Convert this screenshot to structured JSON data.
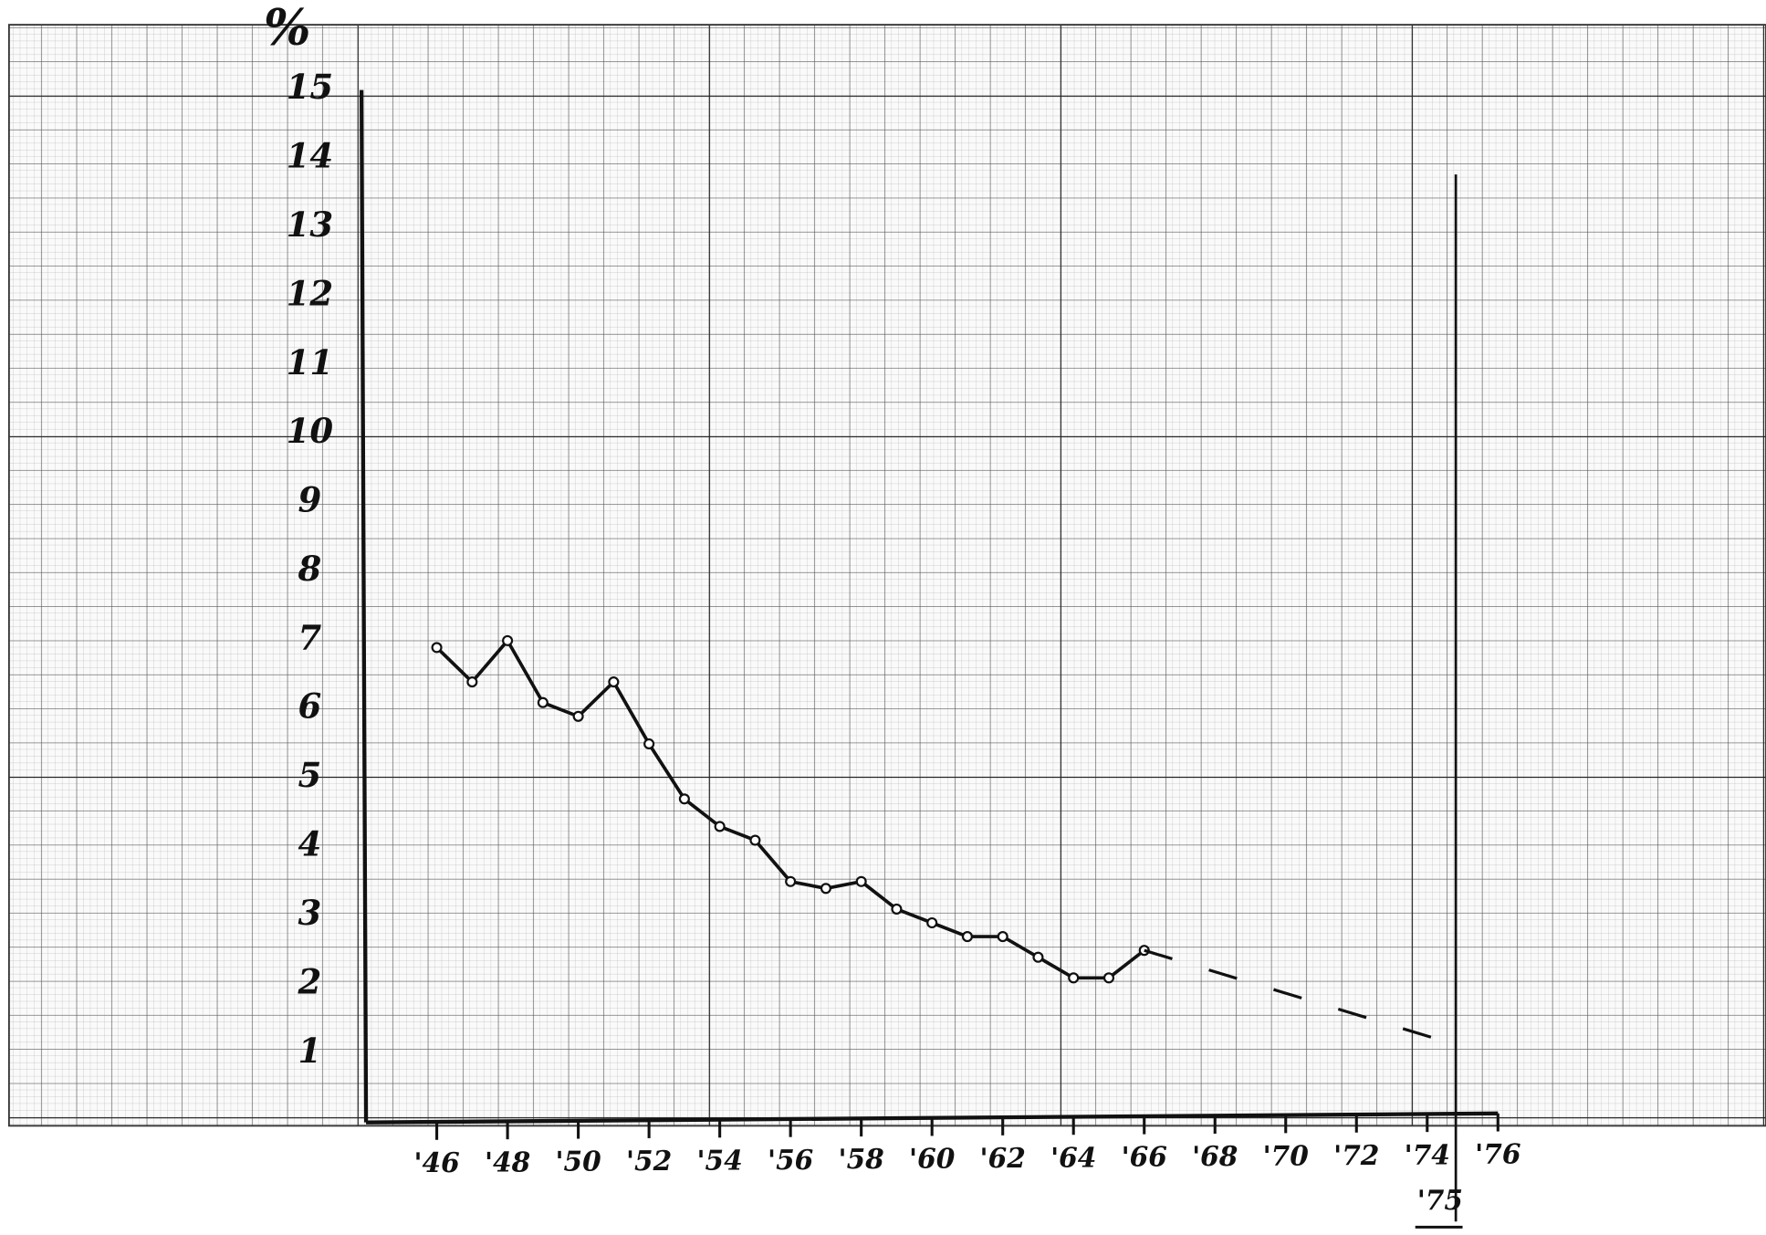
{
  "chart_data": {
    "type": "line",
    "ylabel": "%",
    "xlim": [
      44,
      76
    ],
    "ylim": [
      0,
      15
    ],
    "yticks": [
      1,
      2,
      3,
      4,
      5,
      6,
      7,
      8,
      9,
      10,
      11,
      12,
      13,
      14,
      15
    ],
    "xticks": [
      {
        "value": 46,
        "label": "'46"
      },
      {
        "value": 48,
        "label": "'48"
      },
      {
        "value": 50,
        "label": "'50"
      },
      {
        "value": 52,
        "label": "'52"
      },
      {
        "value": 54,
        "label": "'54"
      },
      {
        "value": 56,
        "label": "'56"
      },
      {
        "value": 58,
        "label": "'58"
      },
      {
        "value": 60,
        "label": "'60"
      },
      {
        "value": 62,
        "label": "'62"
      },
      {
        "value": 64,
        "label": "'64"
      },
      {
        "value": 66,
        "label": "'66"
      },
      {
        "value": 68,
        "label": "'68"
      },
      {
        "value": 70,
        "label": "'70"
      },
      {
        "value": 72,
        "label": "'72"
      },
      {
        "value": 74,
        "label": "'74"
      },
      {
        "value": 76,
        "label": "'76"
      }
    ],
    "marker_x": {
      "value": 75,
      "label": "'75"
    },
    "series": [
      {
        "color": "#111111",
        "style": "solid",
        "markers": true,
        "x": [
          46,
          47,
          48,
          49,
          50,
          51,
          52,
          53,
          54,
          55,
          56,
          57,
          58,
          59,
          60,
          61,
          62,
          63,
          64,
          65,
          66
        ],
        "values": [
          6.9,
          6.4,
          7.0,
          6.1,
          5.9,
          6.4,
          5.5,
          4.7,
          4.3,
          4.1,
          3.5,
          3.4,
          3.5,
          3.1,
          2.9,
          2.7,
          2.7,
          2.4,
          2.1,
          2.1,
          2.5
        ]
      },
      {
        "color": "#111111",
        "style": "dashed",
        "markers": false,
        "x": [
          66,
          75
        ],
        "values": [
          2.5,
          1.1
        ]
      }
    ]
  }
}
